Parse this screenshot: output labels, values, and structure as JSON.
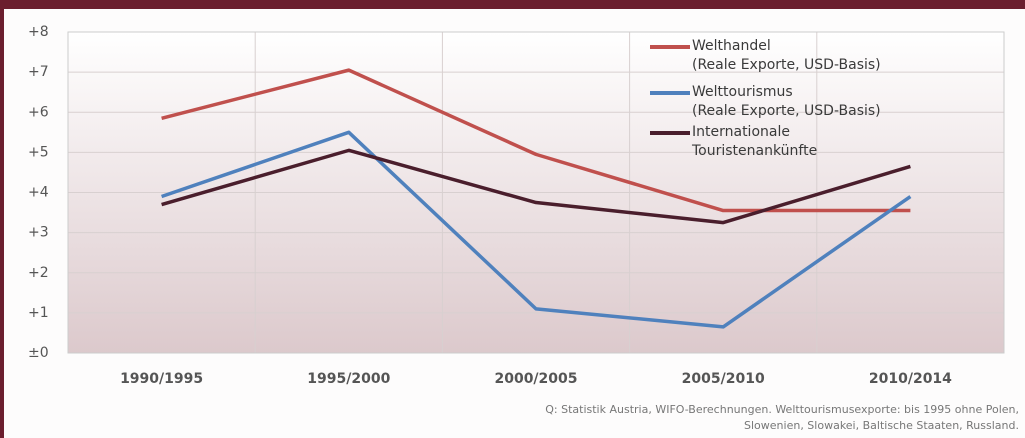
{
  "chart_data": {
    "type": "line",
    "categories": [
      "1990/1995",
      "1995/2000",
      "2000/2005",
      "2005/2010",
      "2010/2014"
    ],
    "series": [
      {
        "name": "Welthandel",
        "note": "(Reale Exporte, USD-Basis)",
        "color": "#c0504d",
        "values": [
          5.85,
          7.05,
          4.95,
          3.55,
          3.55
        ]
      },
      {
        "name": "Welttourismus",
        "note": "(Reale Exporte, USD-Basis)",
        "color": "#4f81bd",
        "values": [
          3.9,
          5.5,
          1.1,
          0.65,
          3.9
        ]
      },
      {
        "name": "Internationale Touristenankünfte",
        "color": "#4a1e2c",
        "values": [
          3.7,
          5.05,
          3.75,
          3.25,
          4.65
        ]
      }
    ],
    "ylim": [
      0,
      8
    ],
    "yticks": [
      {
        "value": 0,
        "label": "±0"
      },
      {
        "value": 1,
        "label": "+1"
      },
      {
        "value": 2,
        "label": "+2"
      },
      {
        "value": 3,
        "label": "+3"
      },
      {
        "value": 4,
        "label": "+4"
      },
      {
        "value": 5,
        "label": "+5"
      },
      {
        "value": 6,
        "label": "+6"
      },
      {
        "value": 7,
        "label": "+7"
      },
      {
        "value": 8,
        "label": "+8"
      }
    ],
    "grid": true,
    "source": [
      "Q: Statistik Austria, WIFO-Berechnungen. Welttourismusexporte: bis 1995 ohne Polen,",
      "Slowenien, Slowakei, Baltische Staaten, Russland."
    ]
  }
}
